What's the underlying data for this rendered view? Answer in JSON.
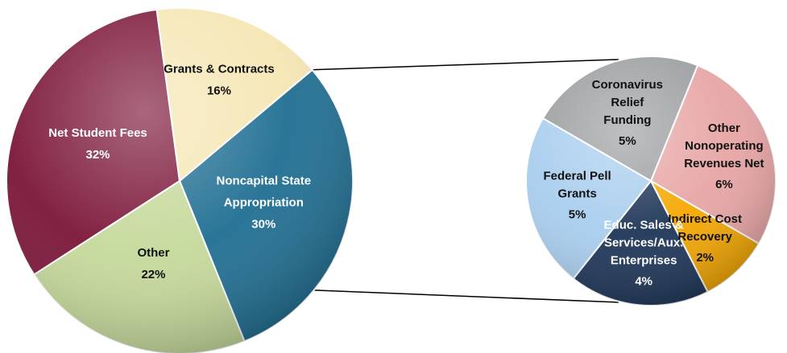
{
  "chart_data": {
    "type": "pie",
    "subtype": "pie-of-pie",
    "title": "",
    "main": {
      "slices": [
        {
          "name": "Noncapital State Appropriation",
          "label": [
            "Noncapital State",
            "Appropriation"
          ],
          "pct_label": "30%",
          "value": 30,
          "color": "#1f6e92",
          "text_color": "#ffffff"
        },
        {
          "name": "Other",
          "label": [
            "Other"
          ],
          "pct_label": "22%",
          "value": 22,
          "color": "#c5d99a",
          "text_color": "#111111"
        },
        {
          "name": "Net Student Fees",
          "label": [
            "Net Student Fees"
          ],
          "pct_label": "32%",
          "value": 32,
          "color": "#7b1538",
          "text_color": "#ffffff"
        },
        {
          "name": "Grants & Contracts",
          "label": [
            "Grants & Contracts"
          ],
          "pct_label": "16%",
          "value": 16,
          "color": "#f5e6b3",
          "text_color": "#111111"
        }
      ]
    },
    "secondary": {
      "slices": [
        {
          "name": "Other Nonoperating Revenues Net",
          "label": [
            "Other",
            "Nonoperating",
            "Revenues Net"
          ],
          "pct_label": "6%",
          "value": 6,
          "color": "#e7a4a4",
          "text_color": "#111111"
        },
        {
          "name": "Indirect Cost Recovery",
          "label": [
            "Indirect Cost",
            "Recovery"
          ],
          "pct_label": "2%",
          "value": 2,
          "color": "#f4a700",
          "text_color": "#111111"
        },
        {
          "name": "Educ. Sales & Services/Aux. Enterprises",
          "label": [
            "Educ. Sales &",
            "Services/Aux.",
            "Enterprises"
          ],
          "pct_label": "4%",
          "value": 4,
          "color": "#1d3557",
          "text_color": "#ffffff"
        },
        {
          "name": "Federal Pell Grants",
          "label": [
            "Federal Pell",
            "Grants"
          ],
          "pct_label": "5%",
          "value": 5,
          "color": "#a8cdee",
          "text_color": "#111111"
        },
        {
          "name": "Coronavirus Relief Funding",
          "label": [
            "Coronavirus",
            "Relief",
            "Funding"
          ],
          "pct_label": "5%",
          "value": 5,
          "color": "#9a9d9f",
          "text_color": "#111111"
        }
      ]
    },
    "legend": "none",
    "labels_inside": true
  }
}
